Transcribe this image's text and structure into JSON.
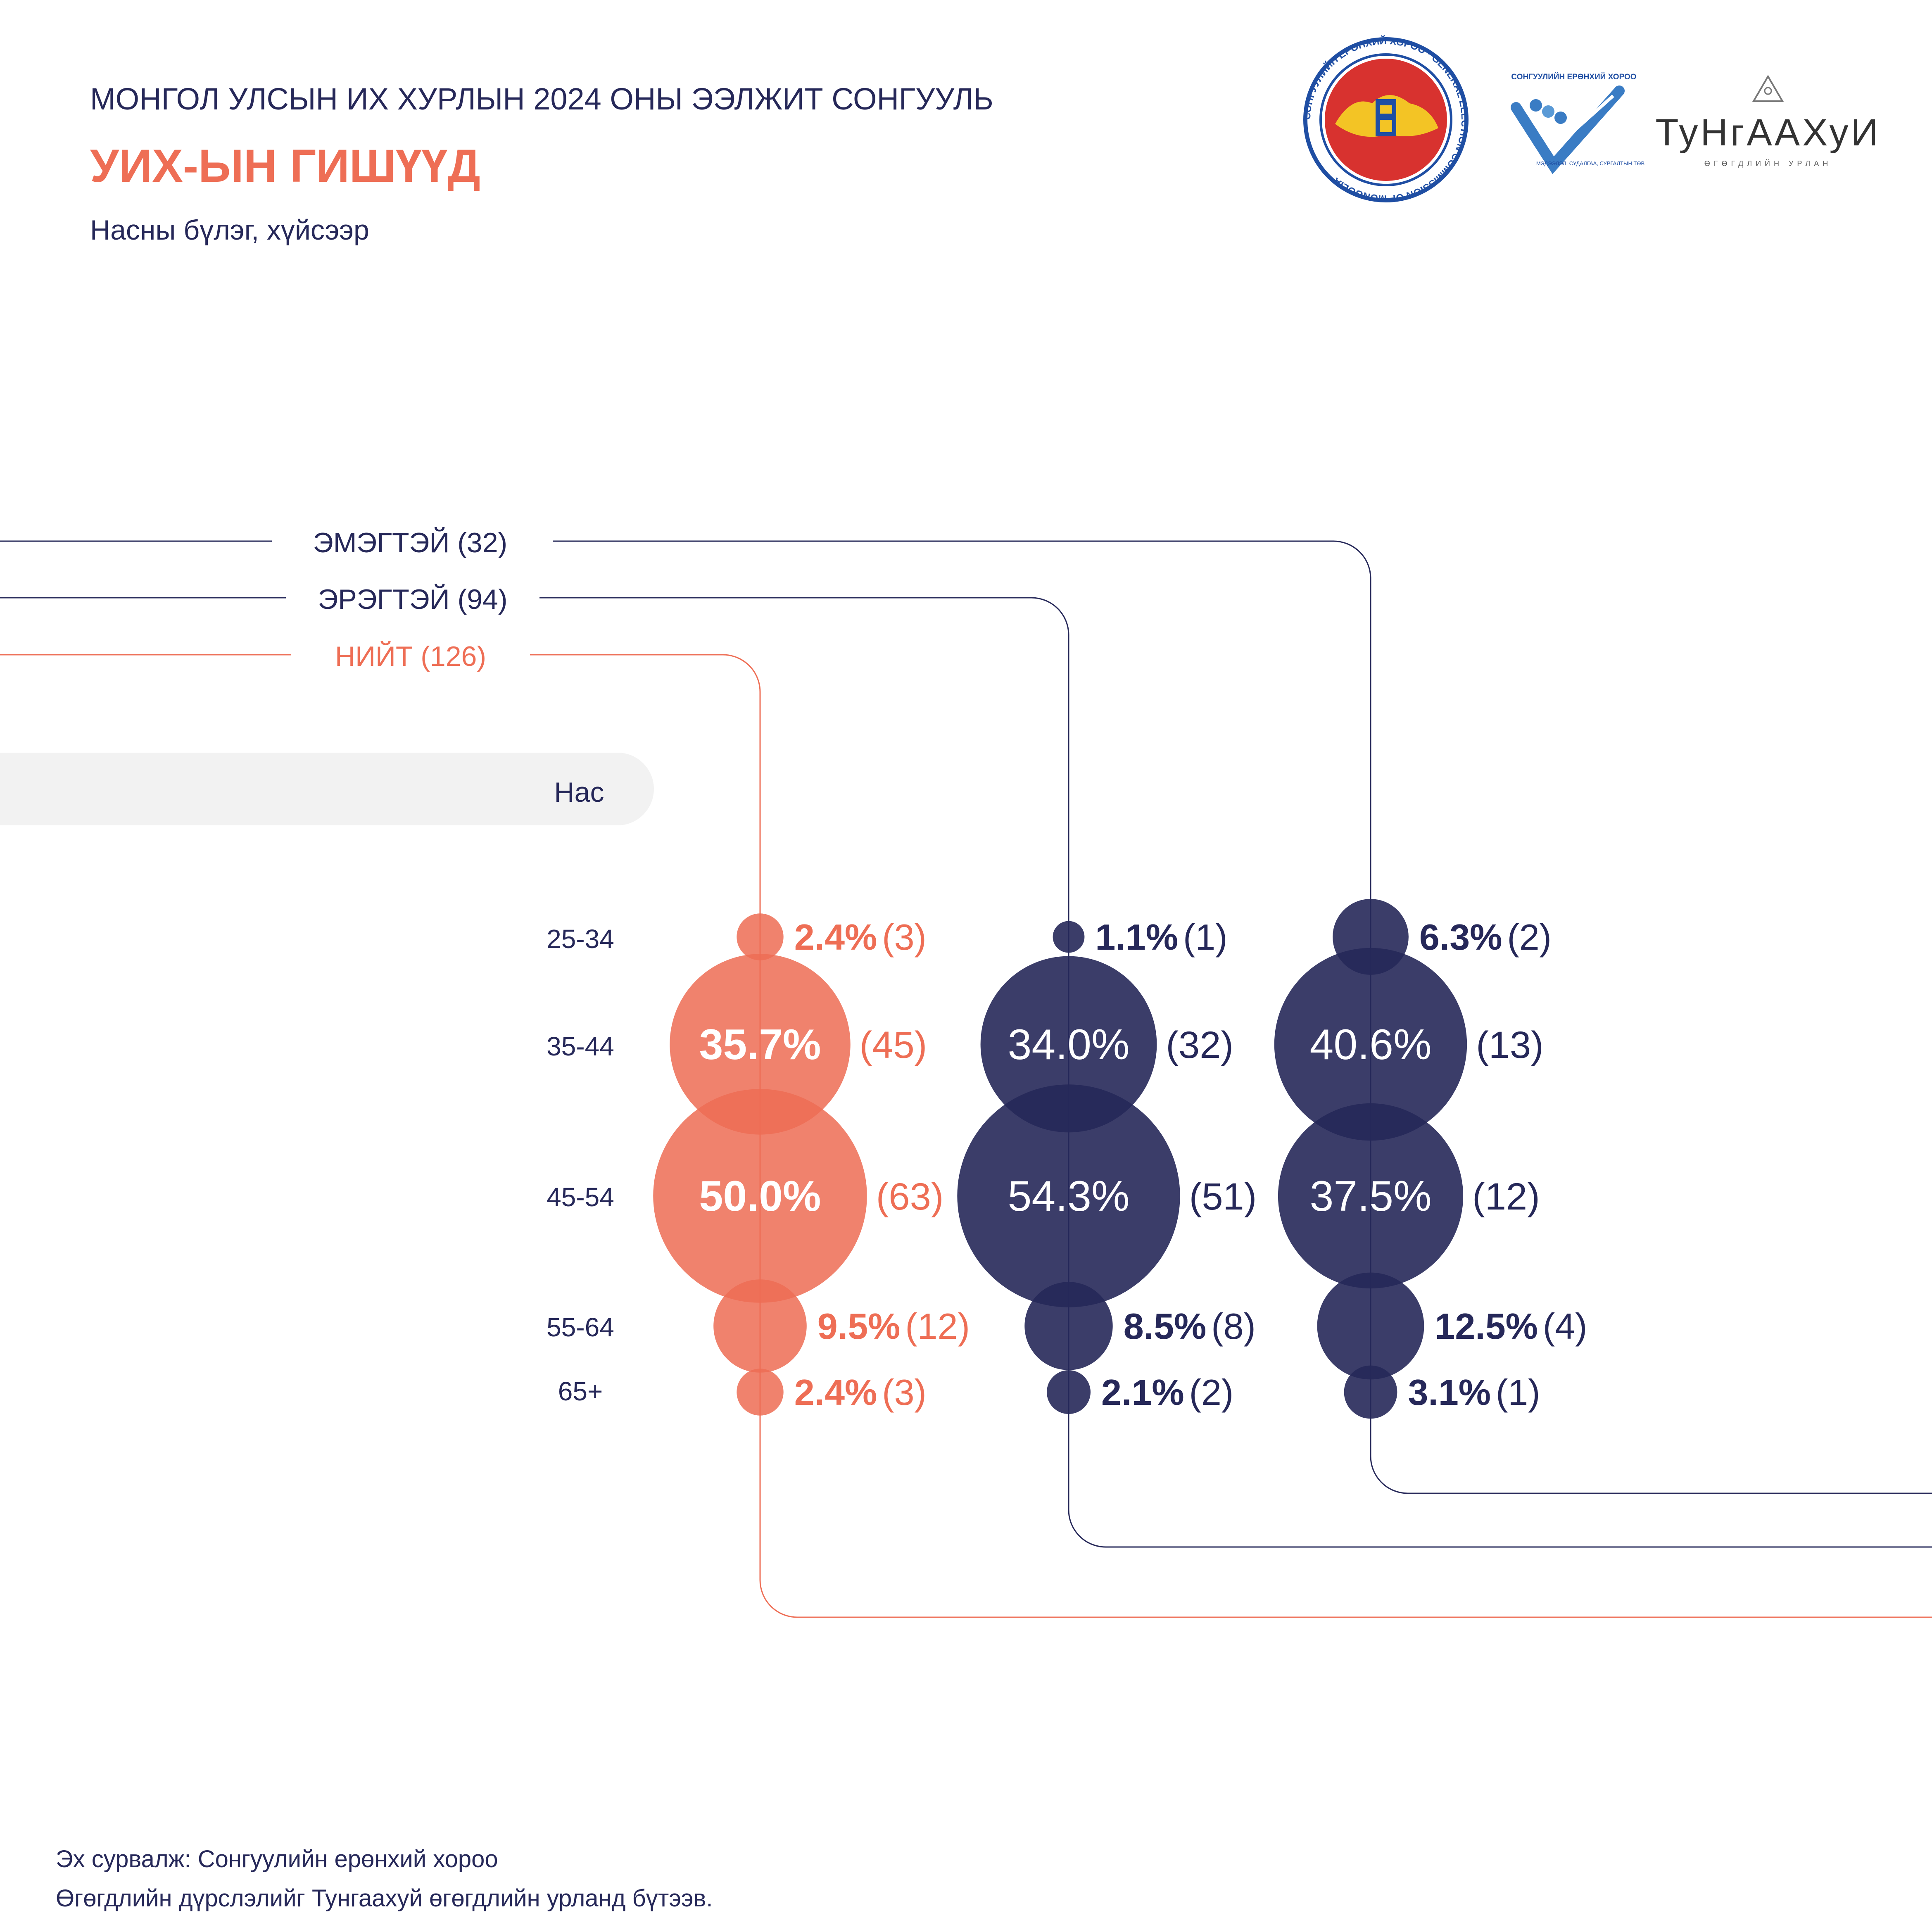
{
  "header": {
    "supertitle": "МОНГОЛ УЛСЫН ИХ ХУРЛЫН 2024 ОНЫ ЭЭЛЖИТ СОНГУУЛЬ",
    "title": "УИХ-ЫН ГИШҮҮД",
    "subtitle": "Насны бүлэг, хүйсээр"
  },
  "logos": {
    "gec": {
      "ring_text": "СОНГУУЛИЙН ЕРӨНХИЙ ХОРОО · GENERAL ELECTION COMMISSION OF MONGOLIA"
    },
    "training_center": {
      "top_text": "СОНГУУЛИЙН ЕРӨНХИЙ ХОРОО",
      "bottom_text": "МЭДЭЭЛЭЛ, СУДАЛГАА, СУРГАЛТЫН ТӨВ"
    },
    "tungaakhui": {
      "name": "ТуНгААХуИ",
      "tagline": "ӨГӨГДЛИЙН УРЛАН"
    }
  },
  "colors": {
    "total": "#EE6E55",
    "gender": "#262859",
    "axis_bg": "#F2F2F2",
    "label_text": "#262859"
  },
  "axis": {
    "label": "Нас"
  },
  "chart_data": {
    "type": "bubble-column",
    "categories": [
      "25-34",
      "35-44",
      "45-54",
      "55-64",
      "65+"
    ],
    "series": [
      {
        "key": "total",
        "name": "НИЙТ (126)",
        "total": 126,
        "values": [
          2.4,
          35.7,
          50.0,
          9.5,
          2.4
        ],
        "counts": [
          3,
          45,
          63,
          12,
          3
        ],
        "value_labels": [
          "2.4%",
          "35.7%",
          "50.0%",
          "9.5%",
          "2.4%"
        ],
        "count_labels": [
          "(3)",
          "(45)",
          "(63)",
          "(12)",
          "(3)"
        ]
      },
      {
        "key": "male",
        "name": "ЭРЭГТЭЙ (94)",
        "total": 94,
        "values": [
          1.1,
          34.0,
          54.3,
          8.5,
          2.1
        ],
        "counts": [
          1,
          32,
          51,
          8,
          2
        ],
        "value_labels": [
          "1.1%",
          "34.0%",
          "54.3%",
          "8.5%",
          "2.1%"
        ],
        "count_labels": [
          "(1)",
          "(32)",
          "(51)",
          "(8)",
          "(2)"
        ]
      },
      {
        "key": "female",
        "name": "ЭМЭГТЭЙ (32)",
        "total": 32,
        "values": [
          6.3,
          40.6,
          37.5,
          12.5,
          3.1
        ],
        "counts": [
          2,
          13,
          12,
          4,
          1
        ],
        "value_labels": [
          "6.3%",
          "40.6%",
          "37.5%",
          "12.5%",
          "3.1%"
        ],
        "count_labels": [
          "(2)",
          "(13)",
          "(12)",
          "(4)",
          "(1)"
        ]
      }
    ],
    "unit": "%"
  },
  "footer": {
    "source": "Эх сурвалж: Сонгуулийн ерөнхий хороо",
    "credit": "Өгөгдлийн дүрслэлийг Тунгаахуй өгөгдлийн урланд бүтээв."
  }
}
